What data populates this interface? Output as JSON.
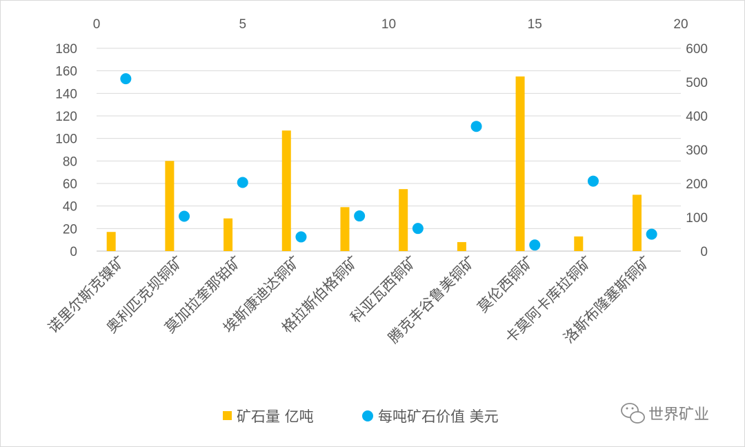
{
  "chart_data": {
    "type": "bar",
    "categories": [
      "诺里尔斯克镍矿",
      "奥利匹克坝铜矿",
      "莫加拉奎那铂矿",
      "埃斯康迪达铜矿",
      "格拉斯伯格铜矿",
      "科亚瓦西铜矿",
      "腾克丰谷鲁美铜矿",
      "莫伦西铜矿",
      "卡莫阿卡库拉铜矿",
      "洛斯布隆塞斯铜矿"
    ],
    "series": [
      {
        "name": "矿石量 亿吨",
        "type": "bar",
        "axis": "left",
        "color": "#ffc000",
        "values": [
          17,
          80,
          29,
          107,
          39,
          55,
          8,
          155,
          13,
          50
        ]
      },
      {
        "name": "每吨矿石价值 美元",
        "type": "scatter",
        "axis": "right",
        "color": "#00b0f0",
        "points": [
          {
            "x": 1,
            "y": 510
          },
          {
            "x": 3,
            "y": 103
          },
          {
            "x": 5,
            "y": 203
          },
          {
            "x": 7,
            "y": 42
          },
          {
            "x": 9,
            "y": 104
          },
          {
            "x": 11,
            "y": 67
          },
          {
            "x": 13,
            "y": 369
          },
          {
            "x": 15,
            "y": 18
          },
          {
            "x": 17,
            "y": 207
          },
          {
            "x": 19,
            "y": 50
          }
        ]
      }
    ],
    "left_axis": {
      "min": 0,
      "max": 180,
      "step": 20
    },
    "right_axis": {
      "min": 0,
      "max": 600,
      "step": 100
    },
    "top_axis": {
      "min": 0,
      "max": 20,
      "step": 5
    },
    "grid": true,
    "legend_position": "bottom"
  },
  "watermark": {
    "text": "世界矿业",
    "icon": "wechat-icon"
  }
}
